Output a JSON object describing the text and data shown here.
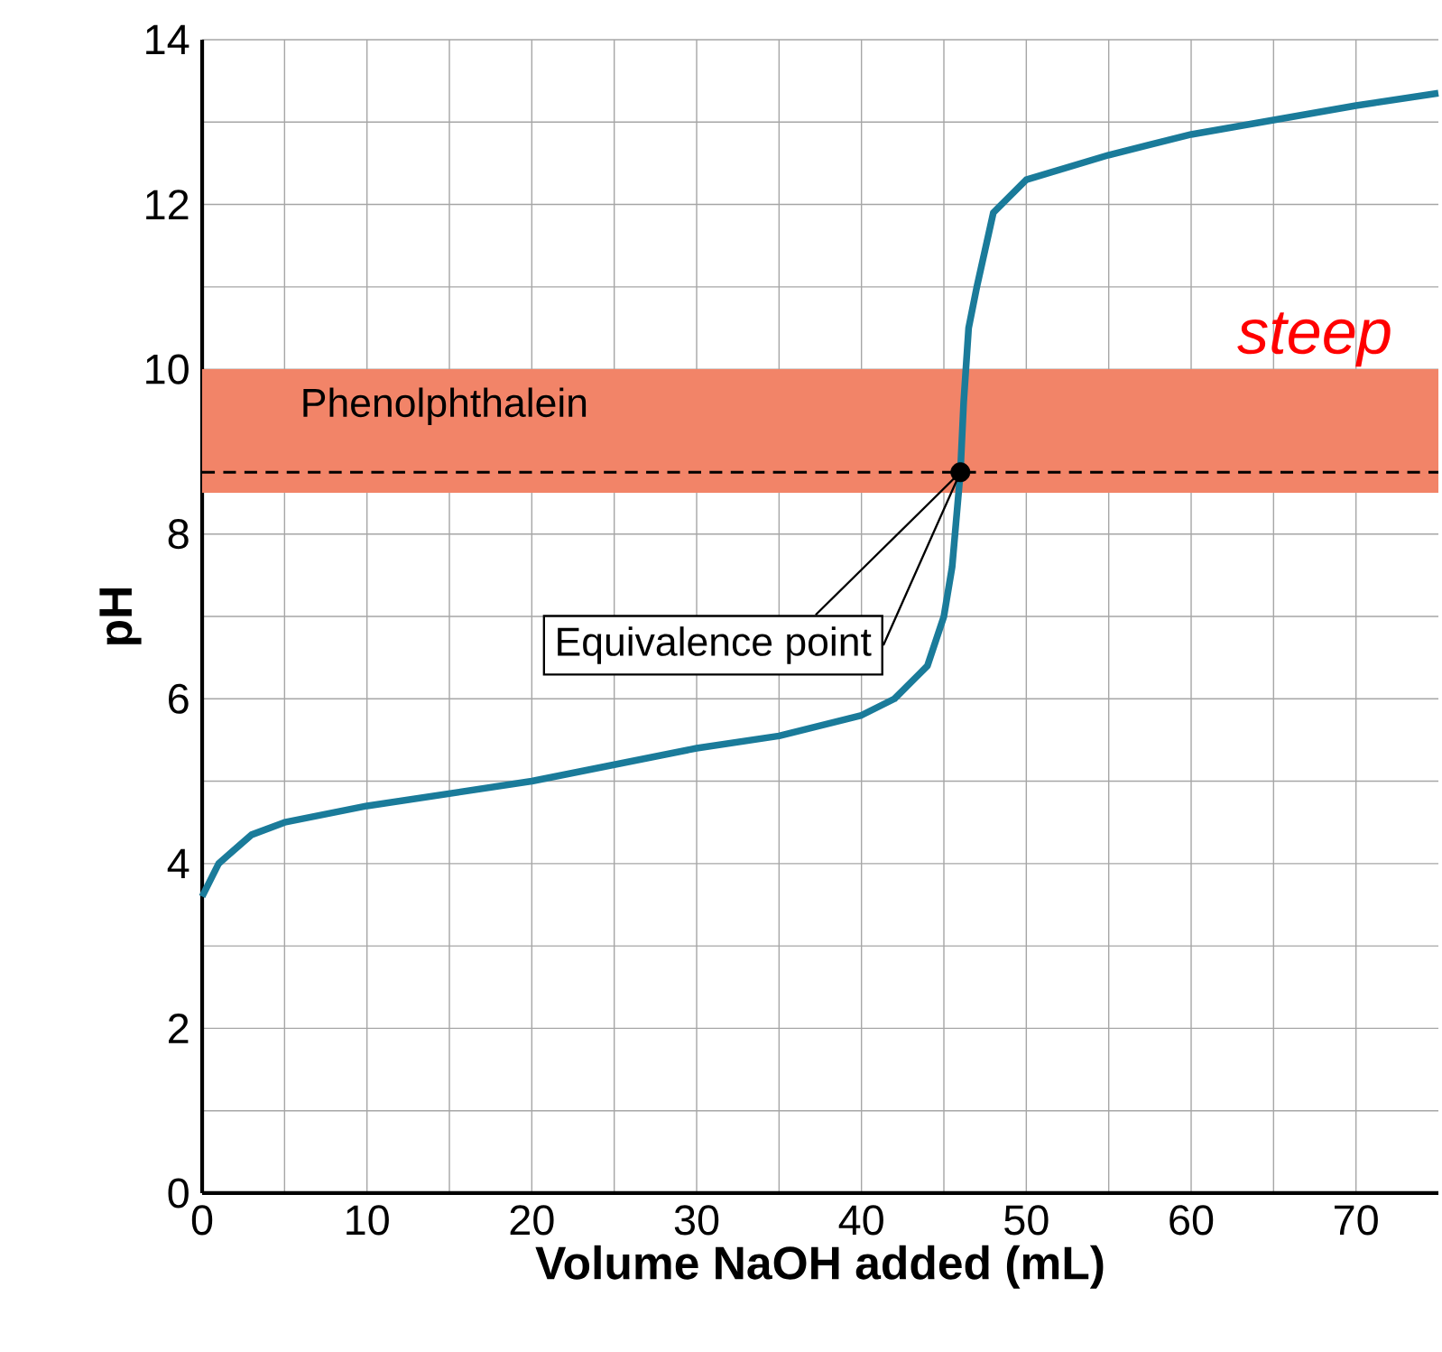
{
  "chart_data": {
    "type": "line",
    "xlabel": "Volume NaOH added (mL)",
    "ylabel": "pH",
    "xlim": [
      0,
      75
    ],
    "ylim": [
      0,
      14
    ],
    "xticks": [
      0,
      {
        "value": 5,
        "label": null
      },
      10,
      {
        "value": 15,
        "label": null
      },
      20,
      {
        "value": 25,
        "label": null
      },
      30,
      {
        "value": 35,
        "label": null
      },
      40,
      {
        "value": 45,
        "label": null
      },
      50,
      {
        "value": 55,
        "label": null
      },
      60,
      {
        "value": 65,
        "label": null
      },
      70
    ],
    "yticks": [
      0,
      {
        "value": 1,
        "label": null
      },
      2,
      {
        "value": 3,
        "label": null
      },
      4,
      {
        "value": 5,
        "label": null
      },
      6,
      {
        "value": 7,
        "label": null
      },
      8,
      {
        "value": 9,
        "label": null
      },
      10,
      {
        "value": 11,
        "label": null
      },
      12,
      {
        "value": 13,
        "label": null
      },
      14
    ],
    "grid": true,
    "series": [
      {
        "color": "#1a7b9a",
        "x": [
          0,
          1,
          3,
          5,
          10,
          20,
          30,
          35,
          40,
          42,
          44,
          45,
          45.5,
          46,
          46.2,
          46.5,
          46.8,
          47,
          48,
          50,
          55,
          60,
          70,
          75
        ],
        "values": [
          3.6,
          4.0,
          4.35,
          4.5,
          4.7,
          5.0,
          5.4,
          5.55,
          5.8,
          6.0,
          6.4,
          7.0,
          7.6,
          8.75,
          9.6,
          10.5,
          10.8,
          11.0,
          11.9,
          12.3,
          12.6,
          12.85,
          13.2,
          13.35
        ]
      },
      {
        "type": "scatter",
        "color": "#000000",
        "marker": "circle",
        "x": [
          46
        ],
        "values": [
          8.75
        ]
      }
    ],
    "bands": [
      {
        "axis": "y",
        "from": 8.5,
        "to": 10,
        "label": "Phenolphthalein",
        "color": "#f28468"
      }
    ],
    "ref_lines": [
      {
        "axis": "y",
        "value": 8.75,
        "line_style": "dashed",
        "color": "#000000"
      }
    ],
    "annotations": [
      "Equivalence point",
      "steep"
    ]
  }
}
